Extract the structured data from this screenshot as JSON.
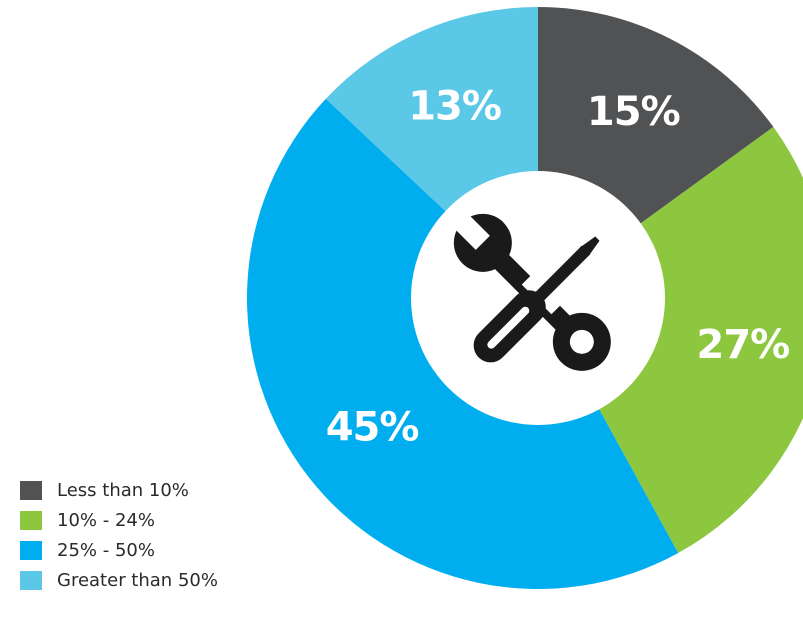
{
  "chart_data": {
    "type": "pie",
    "variant": "donut",
    "title": "",
    "categories": [
      "Less than 10%",
      "10% - 24%",
      "25% - 50%",
      "Greater than 50%"
    ],
    "values": [
      15,
      27,
      45,
      13
    ],
    "labels": [
      "15%",
      "27%",
      "45%",
      "13%"
    ],
    "colors": [
      "#515254",
      "#8dc63f",
      "#00aeef",
      "#5ac8e6"
    ],
    "legend_position": "bottom-left",
    "center_icon": "wrench-screwdriver-icon"
  }
}
